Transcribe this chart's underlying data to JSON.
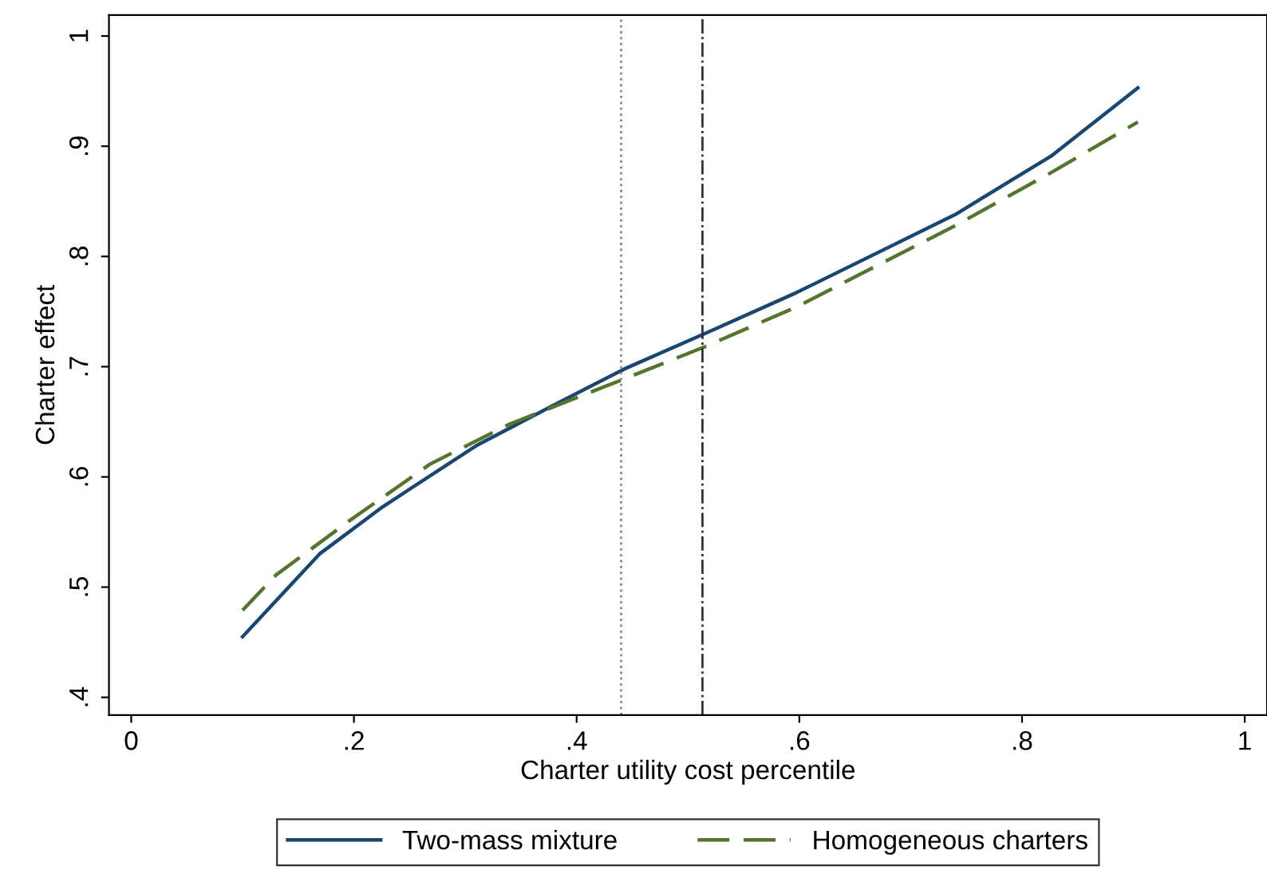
{
  "chart_data": {
    "type": "line",
    "xlabel": "Charter utility cost percentile",
    "ylabel": "Charter effect",
    "xlim": [
      -0.02,
      1.02
    ],
    "ylim": [
      0.384,
      1.019
    ],
    "xticks": [
      {
        "value": 0,
        "label": "0"
      },
      {
        "value": 0.2,
        "label": ".2"
      },
      {
        "value": 0.4,
        "label": ".4"
      },
      {
        "value": 0.6,
        "label": ".6"
      },
      {
        "value": 0.8,
        "label": ".8"
      },
      {
        "value": 1,
        "label": "1"
      }
    ],
    "yticks": [
      {
        "value": 0.4,
        "label": ".4"
      },
      {
        "value": 0.5,
        "label": ".5"
      },
      {
        "value": 0.6,
        "label": ".6"
      },
      {
        "value": 0.7,
        "label": ".7"
      },
      {
        "value": 0.8,
        "label": ".8"
      },
      {
        "value": 0.9,
        "label": ".9"
      },
      {
        "value": 1,
        "label": "1"
      }
    ],
    "grid": false,
    "legend": "bottom",
    "marker": "none",
    "ref_lines": [
      {
        "axis": "x",
        "value": 0.44,
        "color": "#888888",
        "line_style": "dotted"
      },
      {
        "axis": "x",
        "value": 0.513,
        "color": "#333333",
        "line_style": "dashdot"
      }
    ],
    "series": [
      {
        "name": "Two-mass mixture",
        "color": "#1a476f",
        "line_style": "solid",
        "x": [
          0.1,
          0.169,
          0.226,
          0.311,
          0.383,
          0.443,
          0.515,
          0.597,
          0.74,
          0.826,
          0.904
        ],
        "values": [
          0.455,
          0.53,
          0.573,
          0.629,
          0.667,
          0.698,
          0.73,
          0.767,
          0.838,
          0.891,
          0.953
        ]
      },
      {
        "name": "Homogeneous charters",
        "color": "#55752f",
        "line_style": "dashed",
        "x": [
          0.1,
          0.13,
          0.197,
          0.269,
          0.34,
          0.443,
          0.515,
          0.597,
          0.74,
          0.826,
          0.904
        ],
        "values": [
          0.479,
          0.511,
          0.561,
          0.612,
          0.648,
          0.689,
          0.718,
          0.754,
          0.828,
          0.876,
          0.922
        ]
      }
    ]
  }
}
